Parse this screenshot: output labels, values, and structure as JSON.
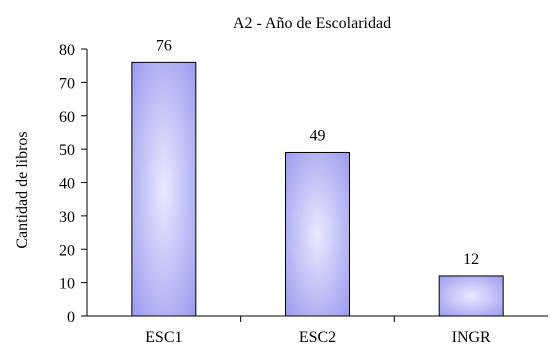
{
  "chart_data": {
    "type": "bar",
    "title": "A2 - Año de Escolaridad",
    "xlabel": "",
    "ylabel": "Cantidad de libros",
    "categories": [
      "ESC1",
      "ESC2",
      "INGR"
    ],
    "values": [
      76,
      49,
      12
    ],
    "data_labels": [
      "76",
      "49",
      "12"
    ],
    "ylim": [
      0,
      80
    ],
    "yticks": [
      0,
      10,
      20,
      30,
      40,
      50,
      60,
      70,
      80
    ],
    "ytick_labels": [
      "0",
      "10",
      "20",
      "30",
      "40",
      "50",
      "60",
      "70",
      "80"
    ],
    "grid": false,
    "legend": "none",
    "colors": {
      "bar_fill_center": "#e9e9ff",
      "bar_fill_edge": "#9b9bef",
      "bar_stroke": "#000000",
      "axis": "#000000",
      "text": "#000000"
    }
  }
}
